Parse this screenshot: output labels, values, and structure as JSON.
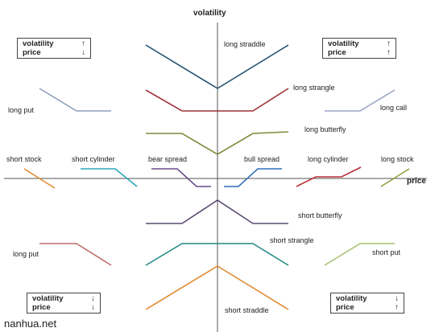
{
  "axes": {
    "vertical_label": "volatility",
    "horizontal_label": "price"
  },
  "boxes": {
    "top_left": {
      "r1": "volatility",
      "a1": "↑",
      "r2": "price",
      "a2": "↓"
    },
    "top_right": {
      "r1": "volatility",
      "a1": "↑",
      "r2": "price",
      "a2": "↑"
    },
    "bottom_left": {
      "r1": "volatility",
      "a1": "↓",
      "r2": "price",
      "a2": "↓"
    },
    "bottom_right": {
      "r1": "volatility",
      "a1": "↓",
      "r2": "price",
      "a2": "↑"
    }
  },
  "strategies": {
    "long_straddle": "long straddle",
    "long_strangle": "long strangle",
    "long_butterfly": "long butterfly",
    "long_put_top": "long put",
    "long_call": "long  call",
    "short_stock": "short stock",
    "short_cylinder": "short cylinder",
    "bear_spread": "bear spread",
    "bull_spread": "bull spread",
    "long_cylinder": "long  cylinder",
    "long_stock": "long stock",
    "short_butterfly": "short butterfly",
    "short_strangle": "short strangle",
    "long_put_bottom": "long put",
    "short_put": "short put",
    "short_straddle": "short straddle"
  },
  "colors": {
    "axis": "#555555",
    "long_straddle": "#1f4e6e",
    "long_strangle": "#a03038",
    "long_butterfly": "#7a8c3a",
    "long_put_top": "#8fa0c0",
    "long_call": "#9aa3c8",
    "short_stock": "#e08a30",
    "short_cylinder": "#2aa8b8",
    "bear_spread": "#6a4a8a",
    "bull_spread": "#2f6fb8",
    "long_cylinder": "#b83038",
    "long_stock": "#8aa040",
    "short_butterfly": "#5a4a72",
    "short_strangle": "#1f8a82",
    "long_put_bottom": "#c06a6a",
    "short_put": "#a8c070",
    "short_straddle": "#e08a30"
  },
  "watermark": "nanhua.net"
}
